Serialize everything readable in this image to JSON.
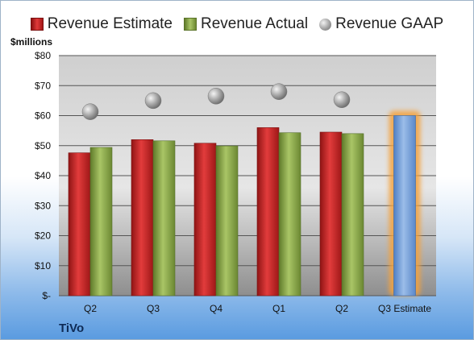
{
  "legend": {
    "estimate": "Revenue Estimate",
    "actual": "Revenue Actual",
    "gaap": "Revenue GAAP"
  },
  "unit_label": "$millions",
  "company": "TiVo",
  "colors": {
    "estimate": "#c62828",
    "actual": "#8aa34a",
    "gaap": "#9e9e9e",
    "forecast": "#6f9ad6",
    "highlight": "#f4a23c"
  },
  "chart_data": {
    "type": "bar",
    "categories": [
      "Q2",
      "Q3",
      "Q4",
      "Q1",
      "Q2",
      "Q3 Estimate"
    ],
    "series": [
      {
        "name": "Revenue Estimate",
        "values": [
          47.6,
          52.0,
          50.8,
          56.0,
          54.5,
          60.0
        ]
      },
      {
        "name": "Revenue Actual",
        "values": [
          49.4,
          51.6,
          49.9,
          54.3,
          54.0,
          null
        ]
      },
      {
        "name": "Revenue GAAP",
        "values": [
          61.3,
          65.0,
          66.5,
          68.0,
          65.3,
          null
        ]
      }
    ],
    "y_ticks": [
      "$-",
      "$10",
      "$20",
      "$30",
      "$40",
      "$50",
      "$60",
      "$70",
      "$80"
    ],
    "ylim": [
      0,
      80
    ],
    "ylabel": "$millions",
    "grid": true,
    "legend_position": "top"
  }
}
